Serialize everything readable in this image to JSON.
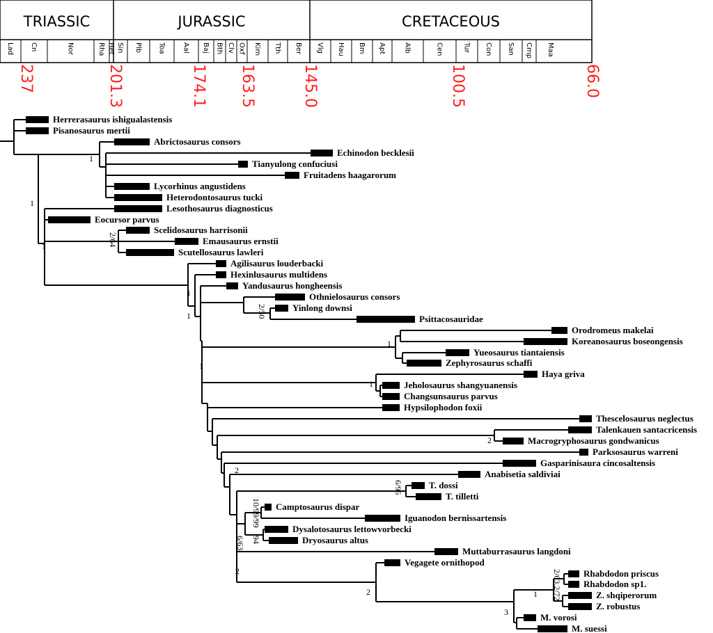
{
  "periods": [
    "TRIASSIC",
    "JURASSIC",
    "CRETACEOUS"
  ],
  "stages": [
    "Lad",
    "Cn",
    "Nor",
    "Rha",
    "Het",
    "Sin",
    "Plb",
    "Toa",
    "Aal",
    "Baj",
    "Bth",
    "Clv",
    "Oxf",
    "Kim",
    "Tth",
    "Ber",
    "Vlg",
    "Hau",
    "Bm",
    "Apt",
    "Alb",
    "Cen",
    "Tur",
    "Con",
    "San",
    "Cmp",
    "Maa"
  ],
  "ages": [
    "237",
    "201.3",
    "174.1",
    "163.5",
    "145.0",
    "100.5",
    "66.0"
  ],
  "taxa": [
    "Herrerasaurus ishigualastensis",
    "Pisanosaurus mertii",
    "Abrictosaurus consors",
    "Echinodon becklesii",
    "Tianyulong confuciusi",
    "Fruitadens haagarorum",
    "Lycorhinus angustidens",
    "Heterodontosaurus tucki",
    "Lesothosaurus diagnosticus",
    "Eocursor parvus",
    "Scelidosaurus harrisonii",
    "Emausaurus ernstii",
    "Scutellosaurus lawleri",
    "Agilisaurus louderbacki",
    "Hexinlusaurus multidens",
    "Yandusaurus hongheensis",
    "Othnielosaurus consors",
    "Yinlong downsi",
    "Psittacosauridae",
    "Orodromeus makelai",
    "Koreanosaurus boseongensis",
    "Yueosaurus tiantaiensis",
    "Zephyrosaurus schaffi",
    "Haya griva",
    "Jeholosaurus shangyuanensis",
    "Changsunsaurus parvus",
    "Hypsilophodon foxii",
    "Thescelosaurus neglectus",
    "Talenkauen santacricensis",
    "Macrogryphosaurus gondwanicus",
    "Parksosaurus warreni",
    "Gasparinisaura cincosaltensis",
    "Anabisetia saldiviai",
    "T. dossi",
    "T. tilletti",
    "Camptosaurus dispar",
    "Iguanodon bernissartensis",
    "Dysalotosaurus lettowvorbecki",
    "Dryosaurus altus",
    "Muttaburrasaurus langdoni",
    "Vegagete ornithopod",
    "Rhabdodon priscus",
    "Rhabdodon sp1.",
    "Z. shqiperorum",
    "Z. robustus",
    "M. vorosi",
    "M. suessi"
  ],
  "support": [
    "1",
    "1",
    "1",
    "2/64",
    "1",
    "1",
    "2/50",
    "1",
    "1",
    "2",
    "2",
    "10/99/99",
    "6/96",
    "6/63",
    "94",
    "2",
    "2",
    "3",
    "2/63.2/72",
    "1",
    "1"
  ]
}
